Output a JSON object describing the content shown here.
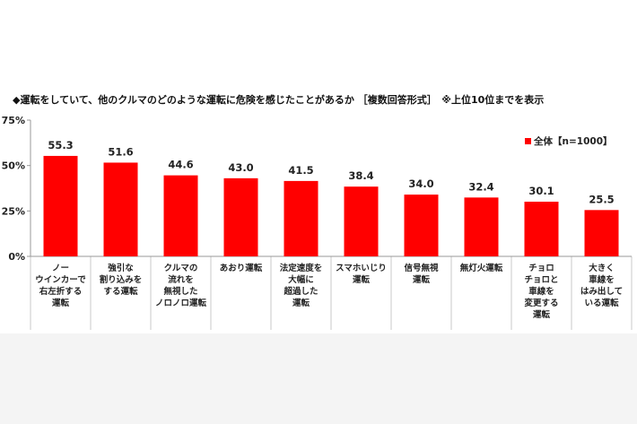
{
  "title": "◆運転をしていて、他のクルマのどのような運転に危険を感じたことがあるか ［複数回答形式］　※上位10位までを表示",
  "legend": {
    "label": "全体【n=1000】",
    "color": "#ff0000"
  },
  "chart_data": {
    "type": "bar",
    "categories": [
      [
        "ノー",
        "ウインカーで",
        "右左折する",
        "運転"
      ],
      [
        "強引な",
        "割り込みを",
        "する運転"
      ],
      [
        "クルマの",
        "流れを",
        "無視した",
        "ノロノロ運転"
      ],
      [
        "あおり運転"
      ],
      [
        "法定速度を",
        "大幅に",
        "超過した",
        "運転"
      ],
      [
        "スマホいじり",
        "運転"
      ],
      [
        "信号無視",
        "運転"
      ],
      [
        "無灯火運転"
      ],
      [
        "チョロ",
        "チョロと",
        "車線を",
        "変更する",
        "運転"
      ],
      [
        "大きく",
        "車線を",
        "はみ出して",
        "いる運転"
      ]
    ],
    "series": [
      {
        "name": "全体【n=1000】",
        "values": [
          55.3,
          51.6,
          44.6,
          43.0,
          41.5,
          38.4,
          34.0,
          32.4,
          30.1,
          25.5
        ]
      }
    ],
    "value_labels": [
      "55.3",
      "51.6",
      "44.6",
      "43.0",
      "41.5",
      "38.4",
      "34.0",
      "32.4",
      "30.1",
      "25.5"
    ],
    "ylim": [
      0,
      75
    ],
    "yticks": [
      0,
      25,
      50,
      75
    ],
    "ytick_labels": [
      "0%",
      "25%",
      "50%",
      "75%"
    ],
    "bar_color": "#ff0000",
    "grid": false,
    "legend_position": "top-right"
  }
}
